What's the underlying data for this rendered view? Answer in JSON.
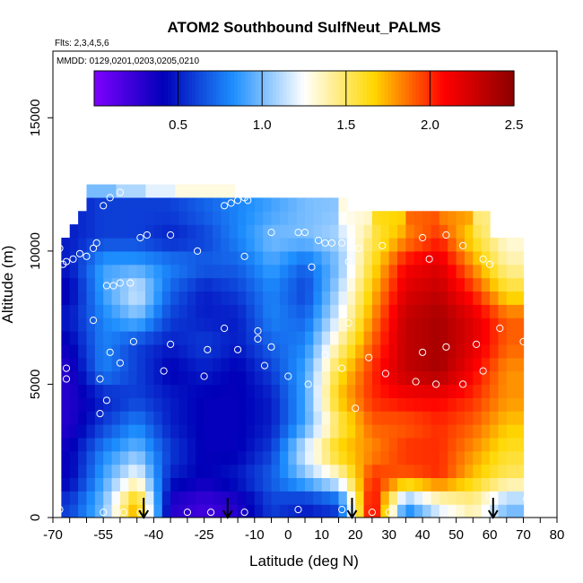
{
  "chart_data": {
    "type": "heatmap",
    "title": "ATOM2 Southbound SulfNeut_PALMS",
    "flights_label": "Flts: 2,3,4,5,6",
    "dates_label": "MMDD: 0129,0201,0203,0205,0210",
    "xlabel": "Latitude (deg N)",
    "ylabel": "Altitude (m)",
    "xlim": [
      -70,
      80
    ],
    "ylim": [
      0,
      17500
    ],
    "x_ticks": [
      "-70",
      "-55",
      "-40",
      "-25",
      "-10",
      "0",
      "10",
      "20",
      "30",
      "40",
      "50",
      "60",
      "70",
      "80"
    ],
    "y_ticks": [
      "0",
      "5000",
      "10000",
      "15000"
    ],
    "colorbar": {
      "range": [
        0,
        2.5
      ],
      "ticks": [
        "0.5",
        "1.0",
        "1.5",
        "2.0",
        "2.5"
      ],
      "colors": [
        "#7f00ff",
        "#0000b8",
        "#1e90ff",
        "#ffffff",
        "#ffd700",
        "#ff0000",
        "#8b0000"
      ]
    },
    "coverage_by_altitude": [
      {
        "alt": [
          12000,
          12500
        ],
        "lat": [
          -57,
          -16
        ]
      },
      {
        "alt": [
          11500,
          12000
        ],
        "lat": [
          -60,
          18
        ]
      },
      {
        "alt": [
          11000,
          11500
        ],
        "lat": [
          -63,
          61
        ]
      },
      {
        "alt": [
          10500,
          11000
        ],
        "lat": [
          -66,
          61
        ]
      },
      {
        "alt": [
          0,
          10500
        ],
        "lat": [
          -68,
          71
        ]
      }
    ],
    "grid_cells": {
      "altitudes": [
        500,
        1500,
        2500,
        3500,
        4500,
        5500,
        6500,
        7500,
        8500,
        9500,
        10500,
        11500
      ],
      "latitudes": [
        -65,
        -55,
        -45,
        -35,
        -25,
        -15,
        -5,
        5,
        15,
        25,
        35,
        45,
        55,
        65
      ],
      "values": [
        [
          0.6,
          1.0,
          1.8,
          0.3,
          0.2,
          0.3,
          0.6,
          0.5,
          0.6,
          2.2,
          0.8,
          1.2,
          1.4,
          1.0
        ],
        [
          0.4,
          0.9,
          1.3,
          0.5,
          0.4,
          0.5,
          0.7,
          1.0,
          1.3,
          2.0,
          1.9,
          2.0,
          1.7,
          1.5
        ],
        [
          0.4,
          0.8,
          1.0,
          0.6,
          0.4,
          0.4,
          0.6,
          1.2,
          1.7,
          1.8,
          2.0,
          2.0,
          1.8,
          1.6
        ],
        [
          0.3,
          0.6,
          0.8,
          0.5,
          0.4,
          0.4,
          0.5,
          0.9,
          1.5,
          1.9,
          1.9,
          2.0,
          1.9,
          1.7
        ],
        [
          0.3,
          0.5,
          0.6,
          0.5,
          0.4,
          0.4,
          0.5,
          0.9,
          1.7,
          2.0,
          2.1,
          2.1,
          2.0,
          1.8
        ],
        [
          0.3,
          0.8,
          0.6,
          0.4,
          0.5,
          0.4,
          0.6,
          0.9,
          1.6,
          2.0,
          2.3,
          2.4,
          2.1,
          1.8
        ],
        [
          0.4,
          0.8,
          0.6,
          0.5,
          0.6,
          0.5,
          0.7,
          0.8,
          1.4,
          1.9,
          2.3,
          2.4,
          2.2,
          1.9
        ],
        [
          0.5,
          0.8,
          1.0,
          0.6,
          0.5,
          0.5,
          0.8,
          0.7,
          1.2,
          1.8,
          2.3,
          2.4,
          2.2,
          1.9
        ],
        [
          0.4,
          0.9,
          1.2,
          0.7,
          0.5,
          0.6,
          0.8,
          0.6,
          1.1,
          1.7,
          2.2,
          2.3,
          2.0,
          1.6
        ],
        [
          0.5,
          0.9,
          0.9,
          0.8,
          0.7,
          0.7,
          0.9,
          0.7,
          1.0,
          1.6,
          2.1,
          2.2,
          1.8,
          1.4
        ],
        [
          0.5,
          0.6,
          0.6,
          0.5,
          0.6,
          0.8,
          1.0,
          1.0,
          1.1,
          1.5,
          1.8,
          2.0,
          1.6,
          1.3
        ],
        [
          0.5,
          0.6,
          0.6,
          0.6,
          0.7,
          0.8,
          0.9,
          1.0,
          null,
          null,
          null,
          null,
          null,
          null
        ]
      ]
    },
    "top_row": {
      "alt": [
        12000,
        12500
      ],
      "lat": [
        -60,
        -16
      ],
      "values": [
        1.0,
        1.1,
        1.2,
        1.3,
        1.3
      ]
    },
    "observations": [
      {
        "lat": -68,
        "alt": 300
      },
      {
        "lat": -55,
        "alt": 200
      },
      {
        "lat": -49,
        "alt": 200
      },
      {
        "lat": -44,
        "alt": 200
      },
      {
        "lat": -30,
        "alt": 200
      },
      {
        "lat": -23,
        "alt": 200
      },
      {
        "lat": -13,
        "alt": 200
      },
      {
        "lat": 3,
        "alt": 300
      },
      {
        "lat": 16,
        "alt": 300
      },
      {
        "lat": 25,
        "alt": 200
      },
      {
        "lat": 30,
        "alt": 200
      },
      {
        "lat": 60,
        "alt": 800
      },
      {
        "lat": 71,
        "alt": 700
      },
      {
        "lat": -56,
        "alt": 3900
      },
      {
        "lat": -54,
        "alt": 4400
      },
      {
        "lat": -56,
        "alt": 5200
      },
      {
        "lat": -50,
        "alt": 5800
      },
      {
        "lat": -66,
        "alt": 5200
      },
      {
        "lat": -66,
        "alt": 5600
      },
      {
        "lat": -37,
        "alt": 5500
      },
      {
        "lat": -25,
        "alt": 5300
      },
      {
        "lat": -7,
        "alt": 5700
      },
      {
        "lat": 0,
        "alt": 5300
      },
      {
        "lat": 6,
        "alt": 5000
      },
      {
        "lat": 11,
        "alt": 6100
      },
      {
        "lat": 16,
        "alt": 5600
      },
      {
        "lat": 24,
        "alt": 6000
      },
      {
        "lat": 29,
        "alt": 5400
      },
      {
        "lat": 38,
        "alt": 5100
      },
      {
        "lat": 44,
        "alt": 5000
      },
      {
        "lat": 52,
        "alt": 5000
      },
      {
        "lat": 58,
        "alt": 5500
      },
      {
        "lat": 20,
        "alt": 4100
      },
      {
        "lat": -53,
        "alt": 6200
      },
      {
        "lat": -46,
        "alt": 6600
      },
      {
        "lat": -35,
        "alt": 6500
      },
      {
        "lat": -24,
        "alt": 6300
      },
      {
        "lat": -15,
        "alt": 6300
      },
      {
        "lat": -5,
        "alt": 6400
      },
      {
        "lat": 40,
        "alt": 6200
      },
      {
        "lat": 47,
        "alt": 6400
      },
      {
        "lat": 56,
        "alt": 6500
      },
      {
        "lat": 70,
        "alt": 6600
      },
      {
        "lat": -9,
        "alt": 6700
      },
      {
        "lat": -9,
        "alt": 7000
      },
      {
        "lat": -19,
        "alt": 7100
      },
      {
        "lat": 18,
        "alt": 7300
      },
      {
        "lat": 63,
        "alt": 7100
      },
      {
        "lat": -58,
        "alt": 7400
      },
      {
        "lat": -54,
        "alt": 8700
      },
      {
        "lat": -50,
        "alt": 8800
      },
      {
        "lat": -47,
        "alt": 8800
      },
      {
        "lat": -52,
        "alt": 8700
      },
      {
        "lat": -60,
        "alt": 9800
      },
      {
        "lat": -62,
        "alt": 9900
      },
      {
        "lat": -64,
        "alt": 9700
      },
      {
        "lat": -66,
        "alt": 9600
      },
      {
        "lat": -67,
        "alt": 9500
      },
      {
        "lat": -58,
        "alt": 10100
      },
      {
        "lat": -44,
        "alt": 10500
      },
      {
        "lat": -42,
        "alt": 10600
      },
      {
        "lat": -35,
        "alt": 10600
      },
      {
        "lat": -27,
        "alt": 10000
      },
      {
        "lat": -13,
        "alt": 9800
      },
      {
        "lat": -5,
        "alt": 10700
      },
      {
        "lat": 3,
        "alt": 10700
      },
      {
        "lat": 5,
        "alt": 10700
      },
      {
        "lat": 9,
        "alt": 10400
      },
      {
        "lat": 11,
        "alt": 10300
      },
      {
        "lat": 13,
        "alt": 10300
      },
      {
        "lat": 16,
        "alt": 10300
      },
      {
        "lat": 21,
        "alt": 10100
      },
      {
        "lat": 28,
        "alt": 10200
      },
      {
        "lat": 40,
        "alt": 10500
      },
      {
        "lat": 47,
        "alt": 10600
      },
      {
        "lat": 52,
        "alt": 10200
      },
      {
        "lat": 58,
        "alt": 9700
      },
      {
        "lat": 60,
        "alt": 9500
      },
      {
        "lat": 69,
        "alt": 11300
      },
      {
        "lat": 71,
        "alt": 11300
      },
      {
        "lat": 7,
        "alt": 9400
      },
      {
        "lat": 18,
        "alt": 9600
      },
      {
        "lat": 42,
        "alt": 9700
      },
      {
        "lat": -57,
        "alt": 10300
      },
      {
        "lat": -68,
        "alt": 10100
      },
      {
        "lat": -55,
        "alt": 11700
      },
      {
        "lat": -53,
        "alt": 12000
      },
      {
        "lat": -50,
        "alt": 12200
      },
      {
        "lat": -19,
        "alt": 11700
      },
      {
        "lat": -17,
        "alt": 11800
      },
      {
        "lat": -15,
        "alt": 11900
      },
      {
        "lat": -13,
        "alt": 12000
      },
      {
        "lat": -12,
        "alt": 11900
      }
    ],
    "arrows_latitude": [
      -43,
      -18,
      19,
      61
    ]
  }
}
